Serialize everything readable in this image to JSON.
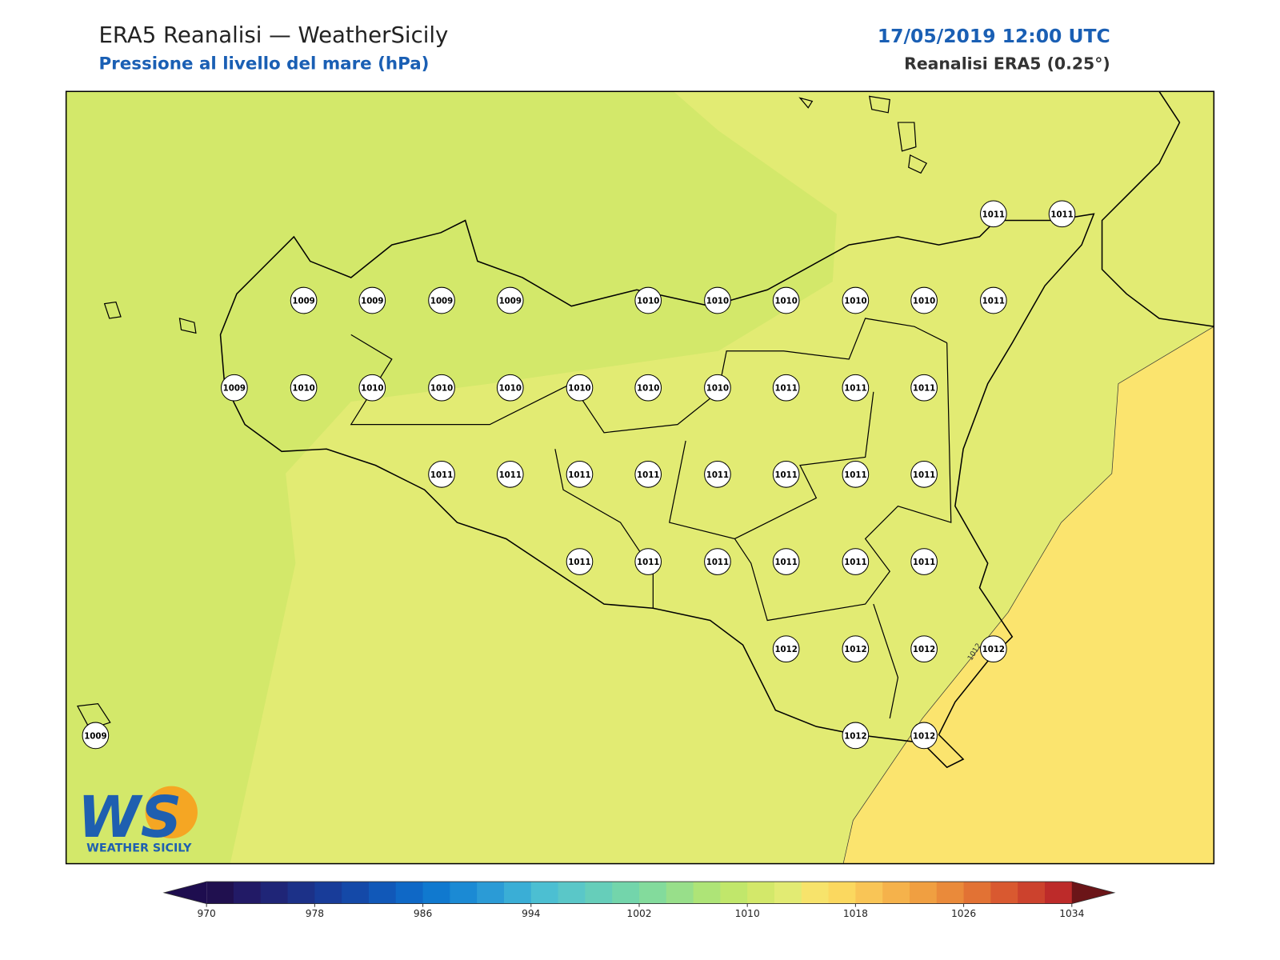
{
  "header": {
    "title": "ERA5 Reanalisi — WeatherSicily",
    "subtitle": "Pressione al livello del mare (hPa)",
    "date": "17/05/2019 12:00 UTC",
    "source": "Reanalisi ERA5 (0.25°)"
  },
  "map": {
    "station_values": [
      1011,
      1011,
      1009,
      1009,
      1009,
      1009,
      1010,
      1010,
      1010,
      1010,
      1010,
      1011,
      1009,
      1010,
      1010,
      1010,
      1010,
      1010,
      1010,
      1010,
      1011,
      1011,
      1011,
      1011,
      1011,
      1011,
      1011,
      1011,
      1011,
      1011,
      1011,
      1011,
      1011,
      1011,
      1011,
      1011,
      1011,
      1012,
      1012,
      1012,
      1012,
      1009,
      1012,
      1012
    ],
    "contour_labels": [
      1012
    ]
  },
  "logo": {
    "mark": "WS",
    "text": "Weather Sicily"
  },
  "colorbar": {
    "ticks": [
      970,
      978,
      986,
      994,
      1002,
      1010,
      1018,
      1026,
      1034
    ],
    "colors": [
      "#20104f",
      "#221a66",
      "#1f2577",
      "#1c3188",
      "#183c99",
      "#1449a8",
      "#1158b8",
      "#0f68c6",
      "#1079cf",
      "#1b8ad4",
      "#2b9bd6",
      "#3aaed6",
      "#4cbfd2",
      "#5ac7c8",
      "#66ceba",
      "#73d5ab",
      "#83db9c",
      "#98df8a",
      "#aee477",
      "#c1e76b",
      "#d3e86a",
      "#e2eb73",
      "#f7e36b",
      "#fbd85f",
      "#f9c556",
      "#f5b24b",
      "#f09f41",
      "#ea8a3a",
      "#e27234",
      "#d95930",
      "#cc422d",
      "#bd2b2a"
    ],
    "under_color": "#1e0d4f",
    "over_color": "#6b1518"
  }
}
